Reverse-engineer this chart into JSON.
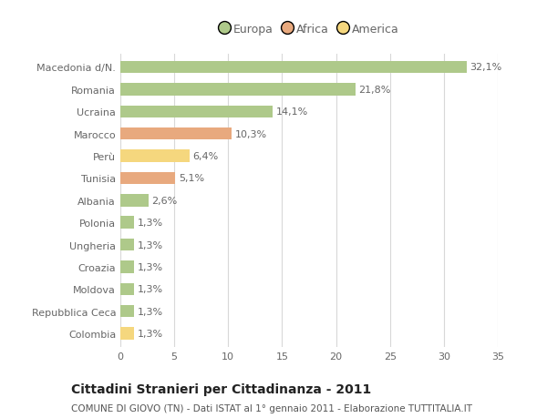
{
  "categories": [
    "Macedonia d/N.",
    "Romania",
    "Ucraina",
    "Marocco",
    "Perù",
    "Tunisia",
    "Albania",
    "Polonia",
    "Ungheria",
    "Croazia",
    "Moldova",
    "Repubblica Ceca",
    "Colombia"
  ],
  "values": [
    32.1,
    21.8,
    14.1,
    10.3,
    6.4,
    5.1,
    2.6,
    1.3,
    1.3,
    1.3,
    1.3,
    1.3,
    1.3
  ],
  "labels": [
    "32,1%",
    "21,8%",
    "14,1%",
    "10,3%",
    "6,4%",
    "5,1%",
    "2,6%",
    "1,3%",
    "1,3%",
    "1,3%",
    "1,3%",
    "1,3%",
    "1,3%"
  ],
  "colors": [
    "#aec98a",
    "#aec98a",
    "#aec98a",
    "#e8a97e",
    "#f5d77e",
    "#e8a97e",
    "#aec98a",
    "#aec98a",
    "#aec98a",
    "#aec98a",
    "#aec98a",
    "#aec98a",
    "#f5d77e"
  ],
  "legend_labels": [
    "Europa",
    "Africa",
    "America"
  ],
  "legend_colors": [
    "#aec98a",
    "#e8a97e",
    "#f5d77e"
  ],
  "title": "Cittadini Stranieri per Cittadinanza - 2011",
  "subtitle": "COMUNE DI GIOVO (TN) - Dati ISTAT al 1° gennaio 2011 - Elaborazione TUTTITALIA.IT",
  "xlim": [
    0,
    35
  ],
  "xticks": [
    0,
    5,
    10,
    15,
    20,
    25,
    30,
    35
  ],
  "bg_color": "#ffffff",
  "plot_bg_color": "#ffffff",
  "grid_color": "#d8d8d8",
  "bar_height": 0.55,
  "label_fontsize": 8,
  "tick_fontsize": 8,
  "title_fontsize": 10,
  "subtitle_fontsize": 7.5,
  "legend_fontsize": 9,
  "label_color": "#666666",
  "tick_color": "#666666"
}
